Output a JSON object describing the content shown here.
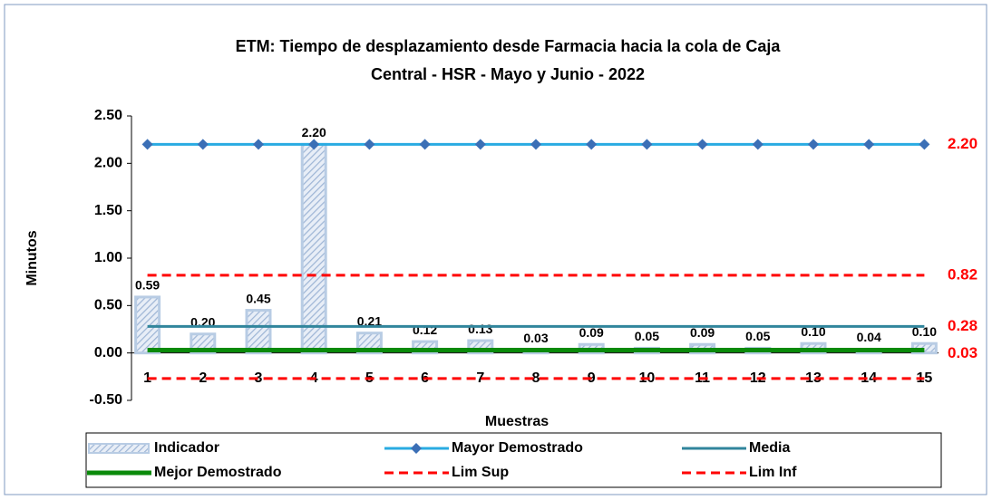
{
  "chart_data": {
    "type": "bar",
    "title": "ETM: Tiempo de desplazamiento desde Farmacia  hacia la cola de Caja",
    "subtitle": "Central  - HSR - Mayo y Junio - 2022",
    "x_label": "Muestras",
    "y_label": "Minutos",
    "categories": [
      "1",
      "2",
      "3",
      "4",
      "5",
      "6",
      "7",
      "8",
      "9",
      "10",
      "11",
      "12",
      "13",
      "14",
      "15"
    ],
    "ylim": [
      -0.5,
      2.5
    ],
    "yticks": [
      {
        "value": -0.5,
        "label": "-0.50"
      },
      {
        "value": 0,
        "label": "0.00"
      },
      {
        "value": 0.5,
        "label": "0.50"
      },
      {
        "value": 1,
        "label": "1.00"
      },
      {
        "value": 1.5,
        "label": "1.50"
      },
      {
        "value": 2,
        "label": "2.00"
      },
      {
        "value": 2.5,
        "label": "2.50"
      }
    ],
    "legend": "bottom",
    "series": [
      {
        "name": "Indicador",
        "type": "bar",
        "color": "#b8cce4",
        "values": [
          0.59,
          0.2,
          0.45,
          2.2,
          0.21,
          0.12,
          0.13,
          0.03,
          0.09,
          0.05,
          0.09,
          0.05,
          0.1,
          0.04,
          0.1
        ],
        "value_labels": [
          "0.59",
          "0.20",
          "0.45",
          "2.20",
          "0.21",
          "0.12",
          "0.13",
          "0.03",
          "0.09",
          "0.05",
          "0.09",
          "0.05",
          "0.10",
          "0.04",
          "0.10"
        ]
      },
      {
        "name": "Mayor Demostrado",
        "type": "line",
        "color": "#29abe2",
        "marker": "diamond",
        "values": [
          2.2,
          2.2,
          2.2,
          2.2,
          2.2,
          2.2,
          2.2,
          2.2,
          2.2,
          2.2,
          2.2,
          2.2,
          2.2,
          2.2,
          2.2
        ],
        "value_labels": [
          null,
          null,
          null,
          null,
          null,
          null,
          null,
          null,
          null,
          null,
          null,
          null,
          null,
          null,
          "2.20"
        ]
      },
      {
        "name": "Media",
        "type": "line",
        "color": "#31859c",
        "values": [
          0.28,
          0.28,
          0.28,
          0.28,
          0.28,
          0.28,
          0.28,
          0.28,
          0.28,
          0.28,
          0.28,
          0.28,
          0.28,
          0.28,
          0.28
        ],
        "value_labels": [
          null,
          null,
          null,
          null,
          null,
          null,
          null,
          null,
          null,
          null,
          null,
          null,
          null,
          null,
          "0.28"
        ]
      },
      {
        "name": "Mejor Demostrado",
        "type": "line",
        "color": "#0a8a0a",
        "values": [
          0.03,
          0.03,
          0.03,
          0.03,
          0.03,
          0.03,
          0.03,
          0.03,
          0.03,
          0.03,
          0.03,
          0.03,
          0.03,
          0.03,
          0.03
        ],
        "value_labels": [
          null,
          null,
          null,
          null,
          null,
          null,
          null,
          null,
          null,
          null,
          null,
          null,
          null,
          null,
          "0.03"
        ]
      },
      {
        "name": "Lim Sup",
        "type": "line",
        "dashed": true,
        "color": "#ff0000",
        "values": [
          0.82,
          0.82,
          0.82,
          0.82,
          0.82,
          0.82,
          0.82,
          0.82,
          0.82,
          0.82,
          0.82,
          0.82,
          0.82,
          0.82,
          0.82
        ],
        "value_labels": [
          null,
          null,
          null,
          null,
          null,
          null,
          null,
          null,
          null,
          null,
          null,
          null,
          null,
          null,
          "0.82"
        ]
      },
      {
        "name": "Lim Inf",
        "type": "line",
        "dashed": true,
        "color": "#ff0000",
        "values": [
          -0.27,
          -0.27,
          -0.27,
          -0.27,
          -0.27,
          -0.27,
          -0.27,
          -0.27,
          -0.27,
          -0.27,
          -0.27,
          -0.27,
          -0.27,
          -0.27,
          -0.27
        ]
      }
    ]
  }
}
